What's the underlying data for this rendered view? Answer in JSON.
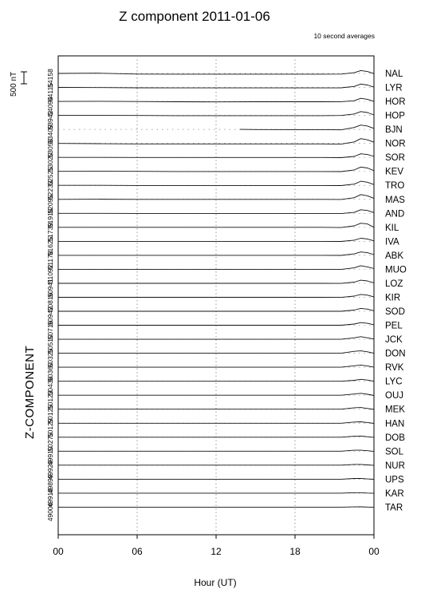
{
  "chart_data": {
    "type": "line",
    "title": "Z component 2011-01-06",
    "subtitle": "10 second averages",
    "xlabel": "Hour (UT)",
    "ylabel": "Z-COMPONENT",
    "scale_label": "500 nT",
    "x_ticks": [
      "00",
      "06",
      "12",
      "18",
      "00"
    ],
    "x_tick_hours": [
      0,
      6,
      12,
      18,
      24
    ],
    "xlim": [
      0,
      24
    ],
    "grid": true,
    "stations": [
      "NAL",
      "LYR",
      "HOR",
      "HOP",
      "BJN",
      "NOR",
      "SOR",
      "KEV",
      "TRO",
      "MAS",
      "AND",
      "KIL",
      "IVA",
      "ABK",
      "MUO",
      "LOZ",
      "KIR",
      "SOD",
      "PEL",
      "JCK",
      "DON",
      "RVK",
      "LYC",
      "OUJ",
      "MEK",
      "HAN",
      "DOB",
      "SOL",
      "NUR",
      "UPS",
      "KAR",
      "TAR"
    ],
    "baselines": [
      "54158",
      "54115",
      "54094",
      "53942",
      "53409",
      "53058",
      "53020",
      "52525",
      "52233",
      "52095",
      "51918",
      "51739",
      "51625",
      "51178",
      "51092",
      "50941",
      "50816",
      "50942",
      "50716",
      "50510",
      "50325",
      "50360",
      "50436",
      "50123",
      "50125",
      "50129",
      "50275",
      "49910",
      "49929",
      "49899",
      "49918",
      "49006"
    ],
    "series": [
      {
        "name": "NAL",
        "x": [
          0,
          3,
          6,
          9,
          12,
          15,
          18,
          20,
          21.5,
          22.5,
          23,
          23.5,
          24
        ],
        "y": [
          0,
          10,
          -25,
          -30,
          -30,
          -30,
          -30,
          -30,
          -25,
          30,
          120,
          80,
          -10
        ]
      },
      {
        "name": "LYR",
        "x": [
          0,
          3,
          6,
          9,
          12,
          15,
          18,
          20,
          21.5,
          22.5,
          23,
          23.5,
          24
        ],
        "y": [
          0,
          -5,
          -15,
          -20,
          -20,
          -20,
          -20,
          -20,
          -15,
          40,
          140,
          100,
          10
        ]
      },
      {
        "name": "HOR",
        "x": [
          0,
          3,
          6,
          9,
          12,
          15,
          18,
          20,
          21.5,
          22.5,
          23,
          23.5,
          24
        ],
        "y": [
          0,
          5,
          -5,
          -15,
          -20,
          -15,
          -15,
          -15,
          -10,
          30,
          130,
          90,
          0
        ]
      },
      {
        "name": "HOP",
        "x": [
          0,
          3,
          6,
          9,
          12,
          15,
          18,
          20,
          21.5,
          22.5,
          23,
          23.5,
          24
        ],
        "y": [
          0,
          0,
          -5,
          -10,
          -10,
          -10,
          -10,
          -10,
          -5,
          60,
          160,
          120,
          20
        ]
      },
      {
        "name": "BJN",
        "x": [
          13.8,
          15,
          18,
          20,
          21.5,
          22.5,
          23,
          23.5,
          24
        ],
        "y": [
          0,
          -5,
          -10,
          -10,
          -20,
          80,
          180,
          140,
          40
        ]
      },
      {
        "name": "NOR",
        "x": [
          0,
          3,
          6,
          9,
          12,
          15,
          18,
          20,
          21.5,
          22.5,
          23,
          23.5,
          24
        ],
        "y": [
          0,
          -10,
          -20,
          -20,
          -20,
          -20,
          -20,
          -20,
          -30,
          60,
          200,
          150,
          50
        ]
      },
      {
        "name": "SOR",
        "x": [
          0,
          3,
          6,
          9,
          12,
          15,
          18,
          20,
          21.5,
          22.5,
          23,
          23.5,
          24
        ],
        "y": [
          0,
          0,
          -5,
          -5,
          -5,
          -5,
          -5,
          -5,
          -10,
          40,
          150,
          120,
          40
        ]
      },
      {
        "name": "KEV",
        "x": [
          0,
          3,
          6,
          9,
          12,
          15,
          18,
          20,
          21.5,
          22.5,
          23,
          23.5,
          24
        ],
        "y": [
          0,
          5,
          0,
          -5,
          -5,
          -5,
          -5,
          -5,
          -10,
          60,
          180,
          140,
          30
        ]
      },
      {
        "name": "TRO",
        "x": [
          0,
          3,
          6,
          9,
          12,
          15,
          18,
          20,
          21.5,
          22.5,
          23,
          23.5,
          24
        ],
        "y": [
          0,
          0,
          -5,
          -5,
          -5,
          -5,
          -5,
          -5,
          -10,
          50,
          170,
          130,
          30
        ]
      },
      {
        "name": "MAS",
        "x": [
          0,
          3,
          6,
          9,
          12,
          15,
          18,
          20,
          21.5,
          22.5,
          23,
          23.5,
          24
        ],
        "y": [
          0,
          5,
          0,
          0,
          0,
          0,
          0,
          0,
          -5,
          70,
          200,
          150,
          40
        ]
      },
      {
        "name": "AND",
        "x": [
          0,
          3,
          6,
          9,
          12,
          15,
          18,
          20,
          21.5,
          22.5,
          23,
          23.5,
          24
        ],
        "y": [
          0,
          0,
          -5,
          -5,
          -5,
          -5,
          -5,
          -5,
          -10,
          40,
          150,
          120,
          30
        ]
      },
      {
        "name": "KIL",
        "x": [
          0,
          3,
          6,
          9,
          12,
          15,
          18,
          20,
          21.5,
          22.5,
          23,
          23.5,
          24
        ],
        "y": [
          0,
          0,
          0,
          0,
          0,
          0,
          0,
          0,
          -10,
          60,
          170,
          140,
          0
        ]
      },
      {
        "name": "IVA",
        "x": [
          0,
          3,
          6,
          9,
          12,
          15,
          18,
          20,
          21.5,
          22.5,
          23,
          23.5,
          24
        ],
        "y": [
          0,
          0,
          0,
          0,
          0,
          0,
          0,
          0,
          -5,
          50,
          130,
          100,
          20
        ]
      },
      {
        "name": "ABK",
        "x": [
          0,
          3,
          6,
          9,
          12,
          15,
          18,
          20,
          21.5,
          22.5,
          23,
          23.5,
          24
        ],
        "y": [
          0,
          0,
          0,
          0,
          0,
          0,
          0,
          0,
          -5,
          60,
          140,
          110,
          30
        ]
      },
      {
        "name": "MUO",
        "x": [
          0,
          3,
          6,
          9,
          12,
          15,
          18,
          20,
          21.5,
          22.5,
          23,
          23.5,
          24
        ],
        "y": [
          0,
          0,
          0,
          0,
          0,
          0,
          0,
          0,
          -5,
          60,
          150,
          100,
          30
        ]
      },
      {
        "name": "LOZ",
        "x": [
          0,
          3,
          6,
          9,
          12,
          15,
          18,
          20,
          21.5,
          22.5,
          23,
          23.5,
          24
        ],
        "y": [
          0,
          0,
          0,
          0,
          0,
          0,
          0,
          0,
          -5,
          50,
          130,
          100,
          20
        ]
      },
      {
        "name": "KIR",
        "x": [
          0,
          3,
          6,
          9,
          12,
          15,
          18,
          20,
          21.5,
          22.5,
          23,
          23.5,
          24
        ],
        "y": [
          0,
          0,
          0,
          0,
          0,
          0,
          0,
          0,
          -5,
          50,
          120,
          90,
          20
        ]
      },
      {
        "name": "SOD",
        "x": [
          0,
          3,
          6,
          9,
          12,
          15,
          18,
          20,
          21.5,
          22.5,
          23,
          23.5,
          24
        ],
        "y": [
          0,
          0,
          0,
          0,
          0,
          0,
          0,
          0,
          0,
          50,
          120,
          90,
          20
        ]
      },
      {
        "name": "PEL",
        "x": [
          0,
          3,
          6,
          9,
          12,
          15,
          18,
          20,
          21.5,
          22.5,
          23,
          23.5,
          24
        ],
        "y": [
          0,
          0,
          0,
          0,
          0,
          0,
          0,
          0,
          0,
          50,
          110,
          80,
          20
        ]
      },
      {
        "name": "JCK",
        "x": [
          0,
          3,
          6,
          9,
          12,
          15,
          18,
          20,
          21.5,
          22.5,
          23,
          23.5,
          24
        ],
        "y": [
          0,
          0,
          0,
          0,
          0,
          0,
          0,
          0,
          0,
          60,
          110,
          60,
          10
        ]
      },
      {
        "name": "DON",
        "x": [
          0,
          3,
          6,
          9,
          12,
          15,
          18,
          20,
          21.5,
          22.5,
          23,
          23.5,
          24
        ],
        "y": [
          0,
          0,
          0,
          0,
          0,
          0,
          0,
          0,
          0,
          80,
          100,
          60,
          0
        ]
      },
      {
        "name": "RVK",
        "x": [
          0,
          3,
          6,
          9,
          12,
          15,
          18,
          20,
          21.5,
          22.5,
          23,
          23.5,
          24
        ],
        "y": [
          0,
          0,
          0,
          0,
          0,
          0,
          0,
          0,
          0,
          60,
          90,
          50,
          0
        ]
      },
      {
        "name": "LYC",
        "x": [
          0,
          3,
          6,
          9,
          12,
          15,
          18,
          20,
          21.5,
          22.5,
          23,
          23.5,
          24
        ],
        "y": [
          0,
          0,
          0,
          0,
          0,
          0,
          0,
          0,
          0,
          40,
          80,
          50,
          0
        ]
      },
      {
        "name": "OUJ",
        "x": [
          0,
          3,
          6,
          9,
          12,
          15,
          18,
          20,
          21.5,
          22.5,
          23,
          23.5,
          24
        ],
        "y": [
          0,
          0,
          0,
          0,
          0,
          0,
          0,
          0,
          0,
          50,
          80,
          40,
          -10
        ]
      },
      {
        "name": "MEK",
        "x": [
          0,
          3,
          6,
          9,
          12,
          15,
          18,
          20,
          21.5,
          22.5,
          23,
          23.5,
          24
        ],
        "y": [
          0,
          0,
          0,
          0,
          0,
          0,
          0,
          0,
          0,
          60,
          70,
          30,
          -10
        ]
      },
      {
        "name": "HAN",
        "x": [
          0,
          3,
          6,
          9,
          12,
          15,
          18,
          20,
          21.5,
          22.5,
          23,
          23.5,
          24
        ],
        "y": [
          0,
          0,
          0,
          0,
          0,
          0,
          0,
          0,
          0,
          50,
          60,
          30,
          -10
        ]
      },
      {
        "name": "DOB",
        "x": [
          0,
          3,
          6,
          9,
          12,
          15,
          18,
          20,
          21.5,
          22.5,
          23,
          23.5,
          24
        ],
        "y": [
          0,
          0,
          0,
          0,
          0,
          0,
          0,
          0,
          0,
          40,
          50,
          20,
          -10
        ]
      },
      {
        "name": "SOL",
        "x": [
          0,
          3,
          6,
          9,
          12,
          15,
          18,
          20,
          21.5,
          22.5,
          23,
          23.5,
          24
        ],
        "y": [
          0,
          0,
          0,
          0,
          0,
          0,
          0,
          0,
          0,
          40,
          40,
          20,
          -10
        ]
      },
      {
        "name": "NUR",
        "x": [
          0,
          3,
          6,
          9,
          12,
          15,
          18,
          20,
          21.5,
          22.5,
          23,
          23.5,
          24
        ],
        "y": [
          0,
          0,
          0,
          0,
          0,
          0,
          0,
          0,
          0,
          30,
          30,
          10,
          -10
        ]
      },
      {
        "name": "UPS",
        "x": [
          0,
          3,
          6,
          9,
          12,
          15,
          18,
          20,
          21.5,
          22.5,
          23,
          23.5,
          24
        ],
        "y": [
          0,
          0,
          0,
          0,
          0,
          0,
          0,
          0,
          0,
          30,
          30,
          10,
          -5
        ]
      },
      {
        "name": "KAR",
        "x": [
          0,
          3,
          6,
          9,
          12,
          15,
          18,
          20,
          21.5,
          22.5,
          23,
          23.5,
          24
        ],
        "y": [
          0,
          0,
          0,
          0,
          0,
          0,
          0,
          0,
          0,
          20,
          20,
          5,
          -5
        ]
      },
      {
        "name": "TAR",
        "x": [
          0,
          3,
          6,
          9,
          12,
          15,
          18,
          20,
          21.5,
          22.5,
          23,
          23.5,
          24
        ],
        "y": [
          0,
          0,
          0,
          0,
          0,
          0,
          0,
          0,
          0,
          10,
          15,
          5,
          -5
        ]
      }
    ]
  }
}
